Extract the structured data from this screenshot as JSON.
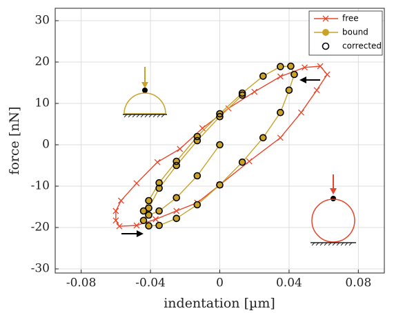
{
  "chart_data": {
    "type": "line",
    "xlabel": "indentation [µm]",
    "ylabel": "force [nN]",
    "xlim": [
      -0.095,
      0.095
    ],
    "ylim": [
      -31,
      33
    ],
    "xticks": [
      -0.08,
      -0.04,
      0,
      0.04,
      0.08
    ],
    "yticks": [
      -30,
      -20,
      -10,
      0,
      10,
      20,
      30
    ],
    "grid": true,
    "legend": "upper right",
    "series": [
      {
        "name": "free",
        "color": "#e8452a",
        "marker": "x",
        "x": [
          0,
          0.017,
          0.035,
          0.047,
          0.056,
          0.062,
          0.058,
          0.049,
          0.035,
          0.02,
          0.005,
          -0.01,
          -0.023,
          -0.036,
          -0.048,
          -0.057,
          -0.06,
          -0.06,
          -0.058,
          -0.048,
          -0.037,
          -0.025,
          -0.013,
          0
        ],
        "values": [
          -9.7,
          -4,
          1.7,
          7.8,
          13.2,
          17,
          19,
          18.7,
          16.5,
          12.8,
          8.8,
          4,
          -1,
          -4.2,
          -9.3,
          -13.5,
          -16,
          -18.3,
          -19.7,
          -19.5,
          -18,
          -16,
          -14,
          -9.7
        ]
      },
      {
        "name": "bound",
        "color": "#c9a227",
        "marker": "star",
        "x": [
          0,
          -0.013,
          -0.025,
          -0.035,
          -0.041,
          -0.044,
          -0.041,
          -0.035,
          -0.025,
          -0.013,
          0,
          0.013,
          0.025,
          0.035,
          0.041,
          0.043,
          0.04,
          0.035,
          0.025,
          0.013,
          0,
          -0.013,
          -0.025,
          -0.035,
          -0.041,
          -0.044,
          -0.041,
          -0.035,
          -0.025,
          -0.013,
          0,
          0.013
        ],
        "values": [
          0,
          -7.5,
          -12.8,
          -16,
          -17,
          -16,
          -13.5,
          -9.2,
          -4,
          2,
          7.5,
          12.5,
          16.6,
          18.9,
          19,
          17,
          13.2,
          7.8,
          1.7,
          -4.2,
          -9.7,
          -14.5,
          -17.8,
          -19.5,
          -19.6,
          -18.3,
          -15.3,
          -10.5,
          -5,
          1,
          6.8,
          12
        ]
      },
      {
        "name": "corrected",
        "color": "#000000",
        "marker": "circle",
        "x": [
          0,
          -0.013,
          -0.025,
          -0.035,
          -0.041,
          -0.044,
          -0.041,
          -0.035,
          -0.025,
          -0.013,
          0,
          0.013,
          0.025,
          0.035,
          0.041,
          0.043,
          0.04,
          0.035,
          0.025,
          0.013,
          0,
          -0.013,
          -0.025,
          -0.035,
          -0.041,
          -0.044,
          -0.041,
          -0.035,
          -0.025,
          -0.013,
          0,
          0.013
        ],
        "values": [
          0,
          -7.5,
          -12.8,
          -16,
          -17,
          -16,
          -13.5,
          -9.2,
          -4,
          2,
          7.5,
          12.5,
          16.6,
          18.9,
          19,
          17,
          13.2,
          7.8,
          1.7,
          -4.2,
          -9.7,
          -14.5,
          -17.8,
          -19.5,
          -19.6,
          -18.3,
          -15.3,
          -10.5,
          -5,
          1,
          6.8,
          12
        ]
      }
    ]
  }
}
